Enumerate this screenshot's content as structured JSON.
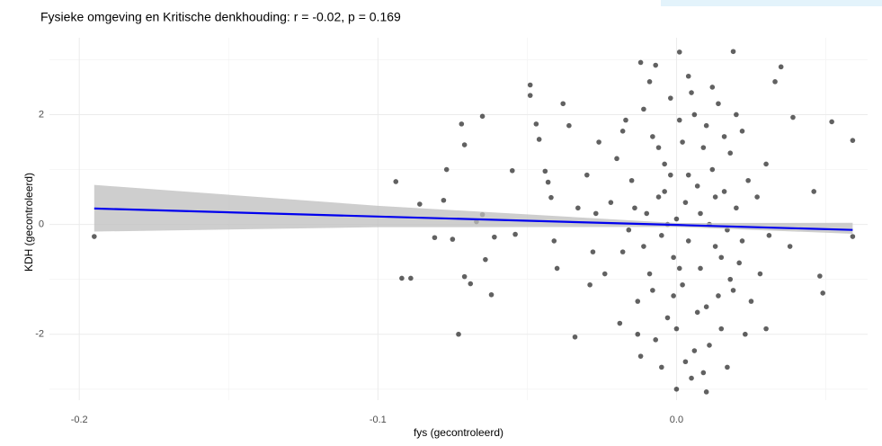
{
  "chart_data": {
    "type": "scatter",
    "title": "Fysieke omgeving en Kritische denkhouding: r = -0.02, p = 0.169",
    "x_label": "fys (gecontroleerd)",
    "y_label": "KDH (gecontroleerd)",
    "xlim": [
      -0.21,
      0.064
    ],
    "ylim": [
      -3.2,
      3.4
    ],
    "xticks": [
      -0.2,
      -0.1,
      {
        "value": 0,
        "label": "0.0"
      }
    ],
    "yticks": [
      -2,
      0,
      2
    ],
    "grid": true,
    "color": "#000000",
    "fit_color": "#0000ee",
    "band_color": "#bebebe",
    "x": [
      -0.195,
      -0.094,
      -0.092,
      -0.089,
      -0.086,
      -0.081,
      -0.078,
      -0.077,
      -0.075,
      -0.073,
      -0.072,
      -0.071,
      -0.071,
      -0.069,
      -0.067,
      -0.065,
      -0.065,
      -0.064,
      -0.062,
      -0.061,
      -0.055,
      -0.054,
      -0.049,
      -0.049,
      -0.047,
      -0.046,
      -0.044,
      -0.043,
      -0.042,
      -0.041,
      -0.04,
      -0.038,
      -0.036,
      -0.034,
      -0.033,
      0.059,
      0.059,
      0.052,
      0.049,
      0.048,
      0.046,
      0.039,
      0.038,
      0.035,
      0.033,
      0.03,
      0.019,
      0.001,
      -0.012,
      0.0,
      0.01,
      0.005,
      -0.02,
      -0.018,
      -0.015,
      -0.013,
      -0.011,
      -0.01,
      -0.009,
      -0.008,
      -0.007,
      -0.006,
      -0.005,
      -0.004,
      -0.003,
      -0.002,
      -0.001,
      0,
      0.001,
      0.002,
      0.003,
      0.004,
      0.005,
      0.006,
      0.007,
      0.008,
      0.009,
      0.01,
      0.011,
      0.012,
      0.013,
      0.014,
      0.015,
      0.016,
      0.017,
      0.018,
      0.019,
      0.02,
      0.021,
      0.022,
      0.023,
      0.024,
      -0.024,
      -0.022,
      -0.019,
      -0.017,
      -0.016,
      -0.014,
      -0.012,
      -0.011,
      -0.009,
      -0.008,
      -0.006,
      -0.005,
      -0.003,
      -0.002,
      -0.001,
      0.001,
      0.002,
      0.003,
      0.004,
      0.006,
      0.007,
      0.008,
      0.01,
      0.011,
      0.013,
      0.015,
      0.016,
      0.018,
      0.02,
      0.022,
      0.025,
      0.027,
      0.028,
      0.03,
      0.031,
      -0.027,
      -0.029,
      -0.03,
      -0.026,
      -0.028,
      -0.004,
      0.0,
      0.004,
      -0.007,
      0.012,
      0.009,
      -0.013,
      0.017,
      -0.018,
      0.014
    ],
    "y": [
      -0.22,
      0.78,
      -0.98,
      -0.98,
      0.37,
      -0.24,
      0.44,
      1.0,
      -0.27,
      -2.0,
      1.83,
      1.45,
      -0.95,
      -1.08,
      0.05,
      1.97,
      0.18,
      -0.64,
      -1.28,
      -0.23,
      0.98,
      -0.18,
      2.54,
      2.35,
      1.83,
      1.55,
      0.97,
      0.77,
      0.49,
      -0.3,
      -0.8,
      2.2,
      1.8,
      -2.05,
      0.3,
      1.53,
      -0.22,
      1.87,
      -1.25,
      -0.94,
      0.6,
      1.95,
      -0.4,
      2.87,
      2.6,
      -1.9,
      3.15,
      3.14,
      2.95,
      -3.0,
      -3.05,
      -2.8,
      1.2,
      -0.5,
      0.8,
      -1.4,
      2.1,
      0.2,
      -0.9,
      1.6,
      -2.1,
      0.5,
      -0.2,
      1.1,
      -1.7,
      0.9,
      -0.6,
      0.1,
      1.9,
      -1.1,
      0.4,
      -0.3,
      2.4,
      -2.3,
      0.7,
      -0.8,
      1.4,
      -1.5,
      0.0,
      1.0,
      -0.4,
      2.2,
      -1.9,
      0.6,
      -0.1,
      1.3,
      -1.2,
      0.3,
      -0.7,
      1.7,
      -2.0,
      0.8,
      -0.9,
      0.4,
      -1.8,
      1.9,
      -0.1,
      0.3,
      -2.4,
      -0.4,
      2.6,
      -1.2,
      1.4,
      -2.6,
      0.0,
      2.3,
      -1.3,
      -0.8,
      1.5,
      -2.5,
      0.9,
      2.0,
      -1.6,
      0.2,
      1.8,
      -2.2,
      0.5,
      -0.6,
      1.6,
      -1.0,
      2.0,
      -0.3,
      -1.4,
      0.5,
      -0.9,
      1.1,
      -0.2,
      0.2,
      -1.1,
      0.9,
      1.5,
      -0.5,
      0.6,
      -1.9,
      2.7,
      2.9,
      2.5,
      -2.7,
      -2.0,
      -2.6,
      1.7,
      -1.3
    ],
    "fit": {
      "x": [
        -0.195,
        -0.1,
        0,
        0.059
      ],
      "y": [
        0.29,
        0.144,
        -0.009,
        -0.1
      ],
      "lower": [
        -0.13,
        -0.05,
        -0.045,
        -0.17
      ],
      "upper": [
        0.72,
        0.34,
        0.027,
        0.03
      ]
    }
  }
}
